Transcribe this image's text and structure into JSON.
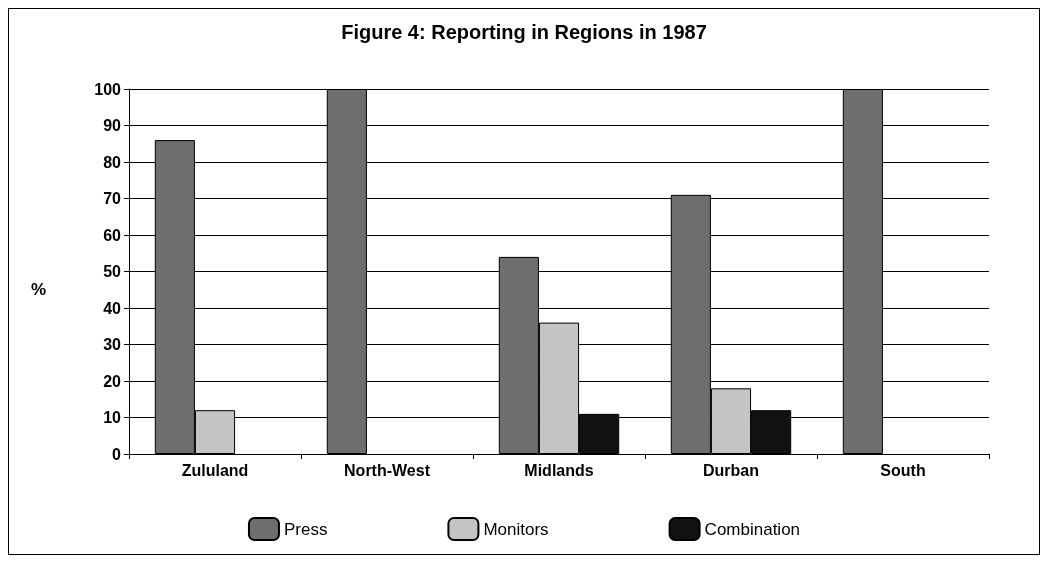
{
  "chart_data": {
    "type": "bar",
    "title": "Figure 4: Reporting in Regions in 1987",
    "ylabel": "%",
    "categories": [
      "Zululand",
      "North-West",
      "Midlands",
      "Durban",
      "South"
    ],
    "series": [
      {
        "name": "Press",
        "color": "#6e6e6e",
        "values": [
          86,
          100,
          54,
          71,
          100
        ]
      },
      {
        "name": "Monitors",
        "color": "#c4c4c4",
        "values": [
          12,
          0,
          36,
          18,
          0
        ]
      },
      {
        "name": "Combination",
        "color": "#111111",
        "values": [
          0,
          0,
          11,
          12,
          0
        ]
      }
    ],
    "ylim": [
      0,
      100
    ],
    "yticks": [
      0,
      10,
      20,
      30,
      40,
      50,
      60,
      70,
      80,
      90,
      100
    ],
    "grid": "y",
    "legend": "bottom"
  }
}
